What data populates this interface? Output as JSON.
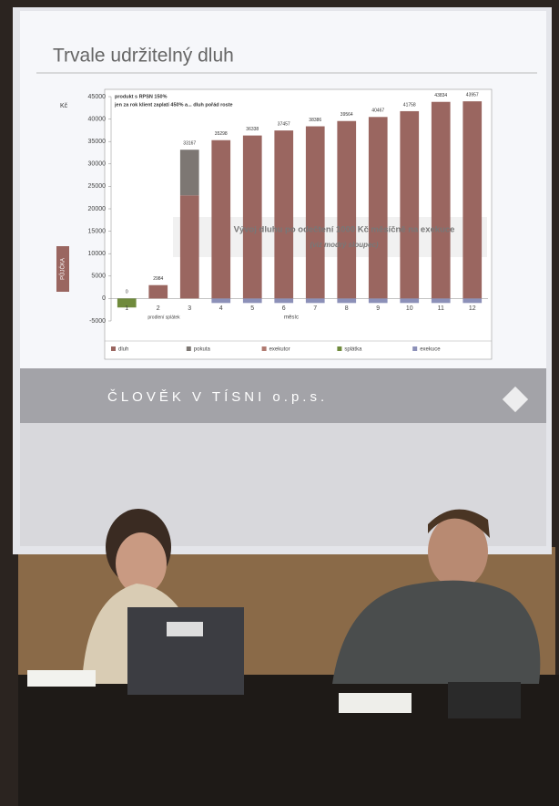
{
  "slide": {
    "title": "Trvale udržitelný dluh",
    "footer": "ČLOVĚK V TÍSNI o.p.s."
  },
  "chart_data": {
    "type": "bar",
    "stacked": true,
    "y_label": "Kč",
    "x_label": "měsíc",
    "annotations": [
      "produkt s RPSN 150%",
      "jen za rok klient zaplatí 450% a... dluh pořád roste"
    ],
    "overlay": [
      "Vývoj dluhu po odečtení 1000 Kč měsíčně na exekuce",
      "(viz modrý sloupec)"
    ],
    "side_label": "PŮJČKA",
    "x_note": "prodlení splátek",
    "categories": [
      "1",
      "2",
      "3",
      "4",
      "5",
      "6",
      "7",
      "8",
      "9",
      "10",
      "11",
      "12"
    ],
    "totals": [
      0,
      2984,
      33167,
      35298,
      36338,
      37457,
      38386,
      39564,
      40467,
      41758,
      43834,
      43957
    ],
    "series": [
      {
        "name": "dluh",
        "color": "#9a6660",
        "values": [
          null,
          2984,
          23000,
          35298,
          36338,
          37457,
          38386,
          39564,
          40467,
          41758,
          43834,
          43957
        ]
      },
      {
        "name": "pokuta",
        "color": "#7d7773",
        "values": [
          null,
          null,
          10167,
          null,
          null,
          null,
          null,
          null,
          null,
          null,
          null,
          null
        ]
      },
      {
        "name": "exekutor",
        "color": "#b07a70",
        "values": [
          null,
          null,
          null,
          null,
          null,
          null,
          null,
          null,
          null,
          null,
          null,
          null
        ]
      },
      {
        "name": "splátka",
        "color": "#6f8a3c",
        "values": [
          -2000,
          null,
          null,
          null,
          null,
          null,
          null,
          null,
          null,
          null,
          null,
          null
        ]
      },
      {
        "name": "exekuce",
        "color": "#8c90b8",
        "values": [
          null,
          null,
          null,
          -1000,
          -1000,
          -1000,
          -1000,
          -1000,
          -1000,
          -1000,
          -1000,
          -1000
        ]
      }
    ],
    "ylim": [
      -5000,
      45000
    ],
    "yticks": [
      -5000,
      0,
      5000,
      10000,
      15000,
      20000,
      25000,
      30000,
      35000,
      40000,
      45000
    ]
  }
}
